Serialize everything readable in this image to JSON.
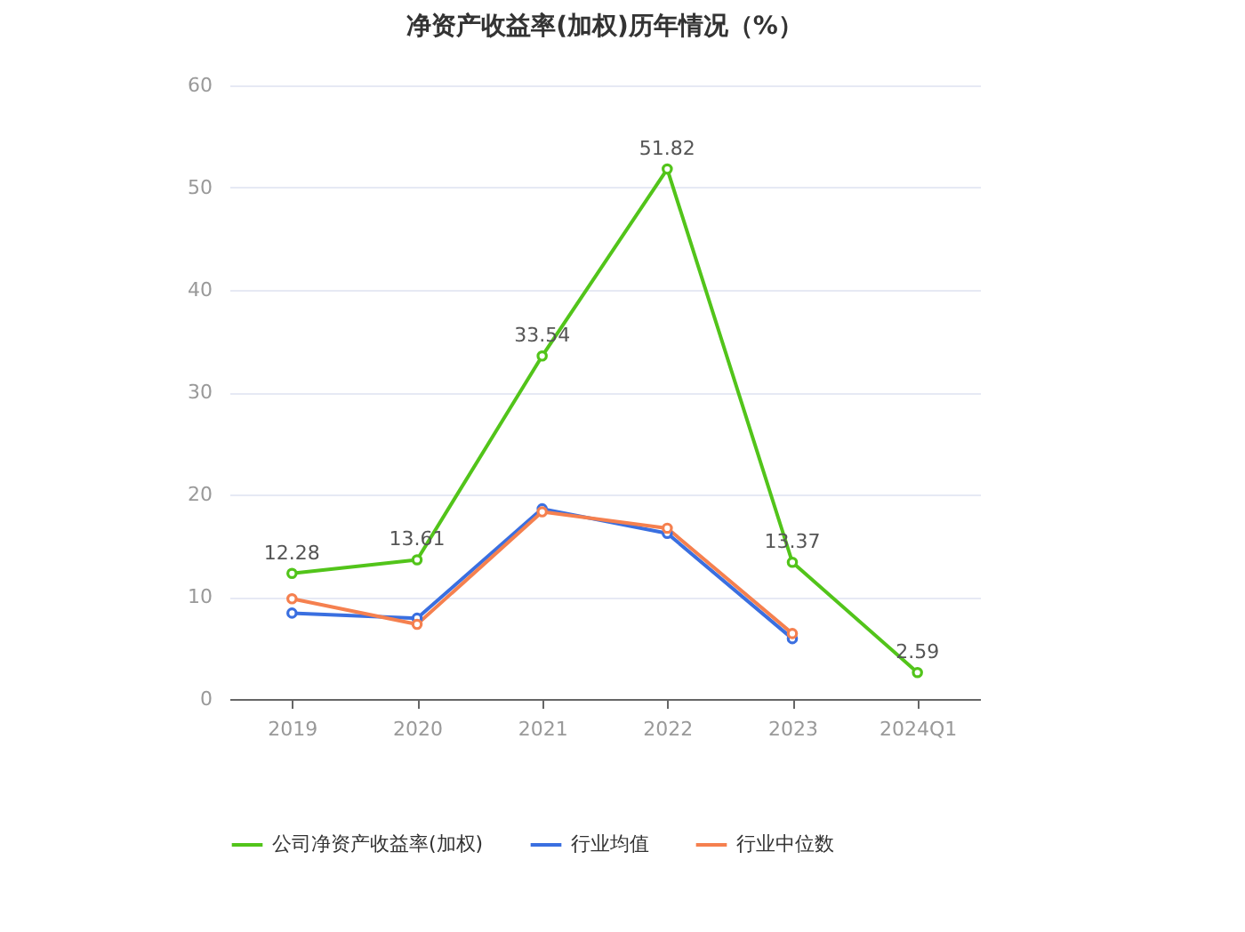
{
  "chart_data": {
    "type": "line",
    "title": "净资产收益率(加权)历年情况（%）",
    "categories": [
      "2019",
      "2020",
      "2021",
      "2022",
      "2023",
      "2024Q1"
    ],
    "series": [
      {
        "name": "公司净资产收益率(加权)",
        "color": "#52c41a",
        "values": [
          12.28,
          13.61,
          33.54,
          51.82,
          13.37,
          2.59
        ],
        "value_labels": [
          "12.28",
          "13.61",
          "33.54",
          "51.82",
          "13.37",
          "2.59"
        ]
      },
      {
        "name": "行业均值",
        "color": "#3a6fe0",
        "values": [
          8.4,
          7.9,
          18.6,
          16.2,
          5.9,
          null
        ]
      },
      {
        "name": "行业中位数",
        "color": "#f5804f",
        "values": [
          9.8,
          7.3,
          18.3,
          16.7,
          6.4,
          null
        ]
      }
    ],
    "ylim": [
      0,
      60
    ],
    "yticks": [
      0,
      10,
      20,
      30,
      40,
      50,
      60
    ],
    "grid": "y",
    "legend": "bottom",
    "marker": "circle",
    "line_style": "solid"
  }
}
